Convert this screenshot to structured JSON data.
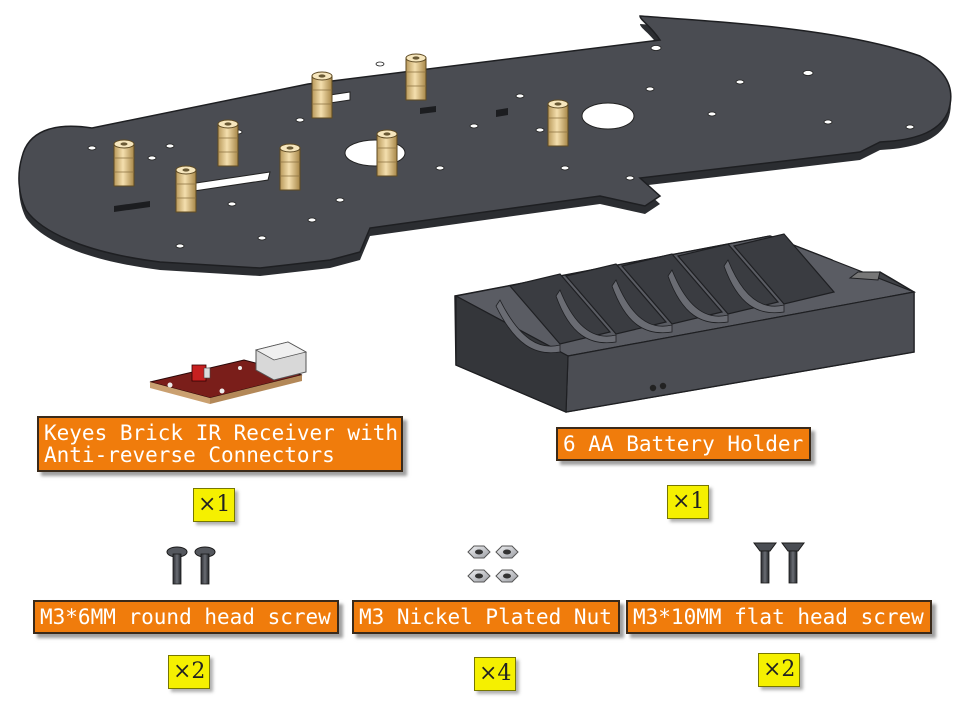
{
  "parts": [
    {
      "label_lines": [
        "Keyes Brick IR Receiver with",
        "Anti-reverse Connectors"
      ],
      "quantity": "×1"
    },
    {
      "label_lines": [
        "6 AA Battery Holder"
      ],
      "quantity": "×1"
    },
    {
      "label_lines": [
        "M3*6MM round head screw"
      ],
      "quantity": "×2"
    },
    {
      "label_lines": [
        "M3 Nickel Plated Nut"
      ],
      "quantity": "×4"
    },
    {
      "label_lines": [
        "M3*10MM flat head screw"
      ],
      "quantity": "×2"
    }
  ],
  "colors": {
    "label_background": "#f07c0c",
    "label_text": "#ffffff",
    "quantity_background": "#f5f000",
    "chassis": "#4a4c52",
    "standoff": "#e2c48a"
  }
}
